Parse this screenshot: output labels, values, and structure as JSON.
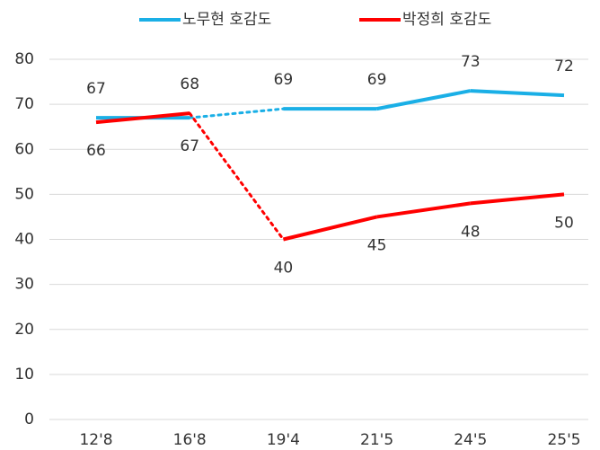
{
  "chart_data": {
    "type": "line",
    "categories": [
      "12'8",
      "16'8",
      "19'4",
      "21'5",
      "24'5",
      "25'5"
    ],
    "series": [
      {
        "name": "노무현 호감도",
        "color": "#1aafe6",
        "values": [
          67,
          67,
          69,
          69,
          73,
          72
        ],
        "label_positions": [
          "above",
          "below",
          "above",
          "above",
          "above",
          "above"
        ]
      },
      {
        "name": "박정희 호감도",
        "color": "#ff0000",
        "values": [
          66,
          68,
          40,
          45,
          48,
          50
        ],
        "label_positions": [
          "below",
          "above",
          "below",
          "below",
          "below",
          "below"
        ]
      }
    ],
    "dotted_segments": [
      1
    ],
    "ylim": [
      0,
      80
    ],
    "yticks": [
      0,
      10,
      20,
      30,
      40,
      50,
      60,
      70,
      80
    ],
    "grid": true,
    "legend": "top"
  }
}
